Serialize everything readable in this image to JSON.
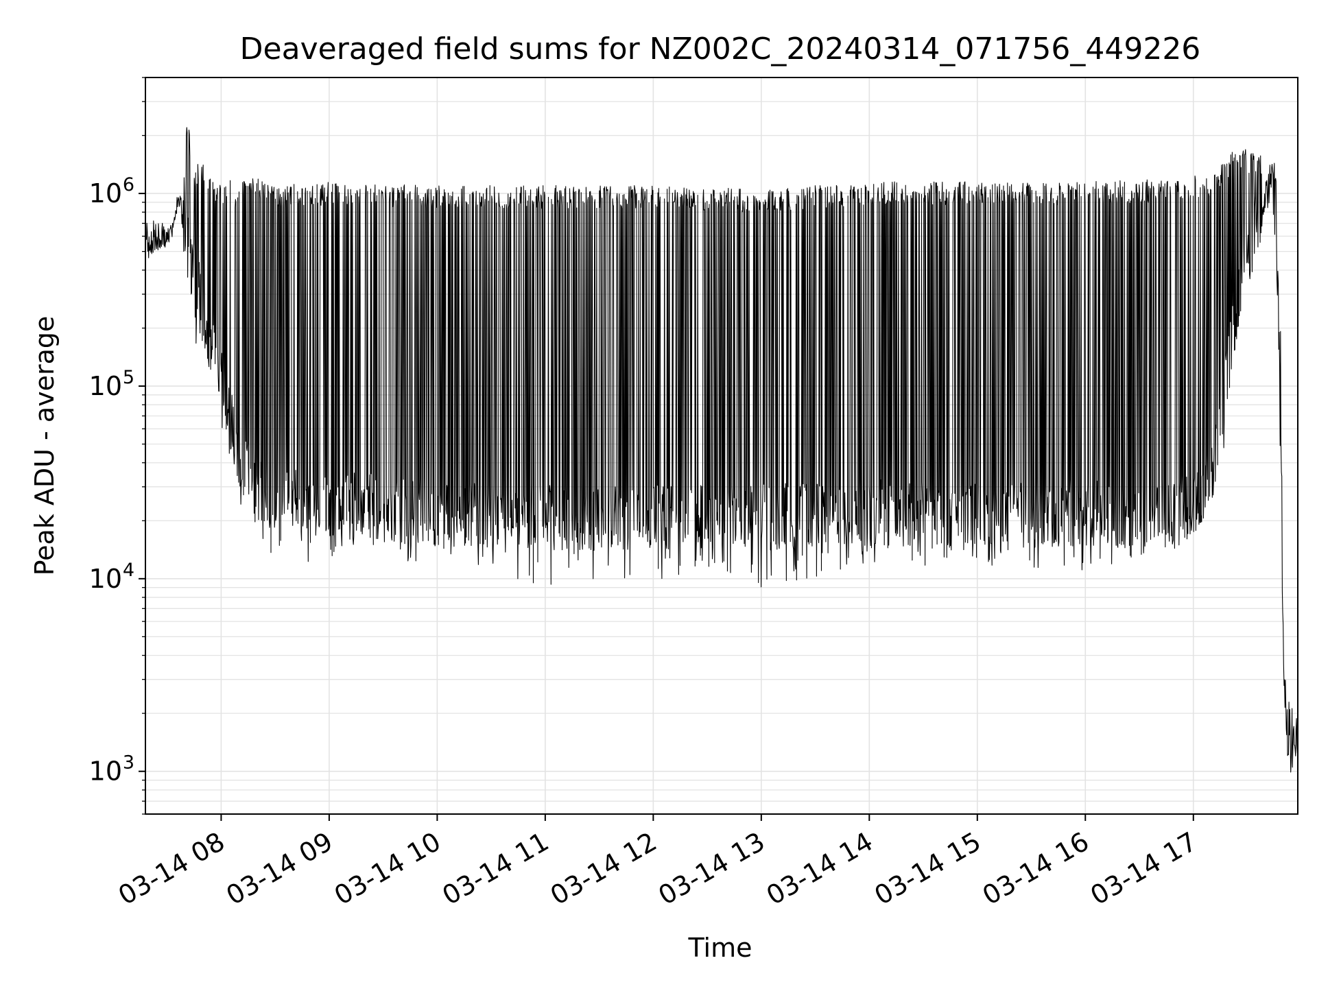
{
  "chart_data": {
    "type": "line",
    "title": "Deaveraged field sums for NZ002C_20240314_071756_449226",
    "xlabel": "Time",
    "ylabel": "Peak ADU - average",
    "yscale": "log",
    "ylim": [
      600,
      4000000
    ],
    "xlim": [
      "2024-03-14 07:17:56",
      "2024-03-14 17:58:00"
    ],
    "grid": true,
    "legend": "none",
    "line_color": "#000000",
    "x_ticks": [
      {
        "value": "2024-03-14 08:00",
        "label": "03-14 08"
      },
      {
        "value": "2024-03-14 09:00",
        "label": "03-14 09"
      },
      {
        "value": "2024-03-14 10:00",
        "label": "03-14 10"
      },
      {
        "value": "2024-03-14 11:00",
        "label": "03-14 11"
      },
      {
        "value": "2024-03-14 12:00",
        "label": "03-14 12"
      },
      {
        "value": "2024-03-14 13:00",
        "label": "03-14 13"
      },
      {
        "value": "2024-03-14 14:00",
        "label": "03-14 14"
      },
      {
        "value": "2024-03-14 15:00",
        "label": "03-14 15"
      },
      {
        "value": "2024-03-14 16:00",
        "label": "03-14 16"
      },
      {
        "value": "2024-03-14 17:00",
        "label": "03-14 17"
      }
    ],
    "y_ticks": [
      {
        "value": 1000,
        "base": "10",
        "exp": "3"
      },
      {
        "value": 10000,
        "base": "10",
        "exp": "4"
      },
      {
        "value": 100000,
        "base": "10",
        "exp": "5"
      },
      {
        "value": 1000000,
        "base": "10",
        "exp": "6"
      }
    ],
    "series": [
      {
        "x": [
          "2024-03-14 07:18",
          "2024-03-14 07:22",
          "2024-03-14 07:26",
          "2024-03-14 07:30",
          "2024-03-14 07:33",
          "2024-03-14 07:36",
          "2024-03-14 07:38",
          "2024-03-14 07:41",
          "2024-03-14 07:45",
          "2024-03-14 07:49",
          "2024-03-14 07:53",
          "2024-03-14 07:57",
          "2024-03-14 08:01",
          "2024-03-14 08:05",
          "2024-03-14 08:08",
          "2024-03-14 08:12",
          "2024-03-14 08:20",
          "2024-03-14 08:30",
          "2024-03-14 09:00",
          "2024-03-14 10:00",
          "2024-03-14 11:00",
          "2024-03-14 12:00",
          "2024-03-14 13:00",
          "2024-03-14 14:00",
          "2024-03-14 15:00",
          "2024-03-14 16:00",
          "2024-03-14 16:50",
          "2024-03-14 17:05",
          "2024-03-14 17:12",
          "2024-03-14 17:18",
          "2024-03-14 17:25",
          "2024-03-14 17:32",
          "2024-03-14 17:38",
          "2024-03-14 17:43",
          "2024-03-14 17:46",
          "2024-03-14 17:48",
          "2024-03-14 17:50",
          "2024-03-14 17:52",
          "2024-03-14 17:54",
          "2024-03-14 17:56",
          "2024-03-14 17:58"
        ],
        "y_lower": [
          450000,
          480000,
          520000,
          520000,
          600000,
          850000,
          700000,
          450000,
          300000,
          220000,
          150000,
          110000,
          80000,
          55000,
          40000,
          30000,
          25000,
          22000,
          20000,
          18000,
          17000,
          17000,
          17000,
          18000,
          17000,
          18000,
          18000,
          22000,
          35000,
          90000,
          250000,
          450000,
          700000,
          900000,
          550000,
          90000,
          3000,
          1200,
          1100,
          1000,
          900
        ],
        "y_upper": [
          700000,
          750000,
          720000,
          680000,
          700000,
          1050000,
          1000000,
          2600000,
          1400000,
          1500000,
          1300000,
          1200000,
          1100000,
          1200000,
          1100000,
          1250000,
          1200000,
          1100000,
          1150000,
          1100000,
          1100000,
          1100000,
          1050000,
          1150000,
          1150000,
          1150000,
          1200000,
          1250000,
          1300000,
          1500000,
          1800000,
          1650000,
          1600000,
          1500000,
          1450000,
          600000,
          5000,
          2500,
          2600,
          2200,
          1800
        ],
        "y_min": [
          450000,
          480000,
          500000,
          500000,
          550000,
          800000,
          650000,
          420000,
          160000,
          180000,
          120000,
          90000,
          55000,
          40000,
          30000,
          22000,
          18000,
          11500,
          12500,
          12000,
          9000,
          10000,
          9000,
          11500,
          11500,
          11000,
          14000,
          20000,
          28000,
          40000,
          200000,
          400000,
          600000,
          800000,
          500000,
          60000,
          2500,
          1000,
          950,
          900,
          850
        ]
      }
    ]
  }
}
